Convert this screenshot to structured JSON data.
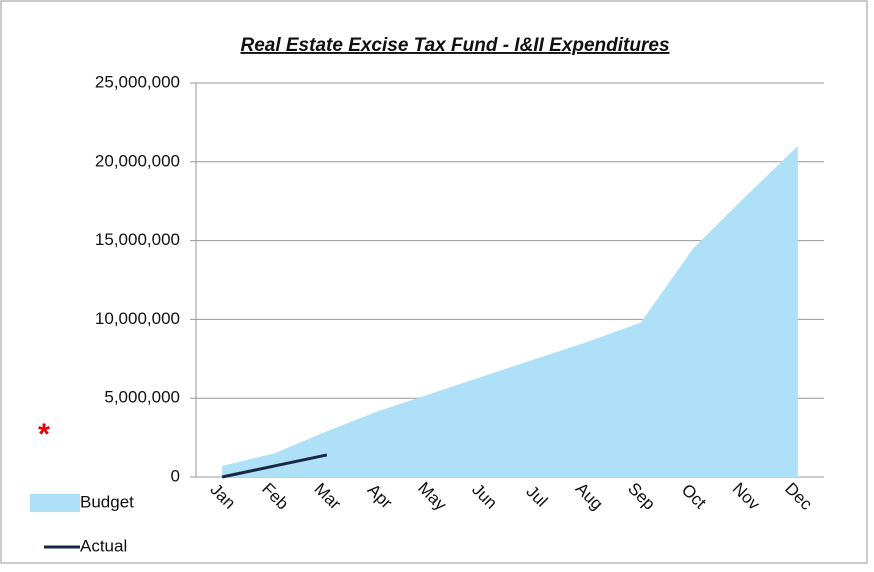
{
  "chart_data": {
    "type": "area",
    "title": "Real Estate Excise Tax Fund - I&II Expenditures",
    "annotation": "*",
    "categories": [
      "Jan",
      "Feb",
      "Mar",
      "Apr",
      "May",
      "Jun",
      "Jul",
      "Aug",
      "Sep",
      "Oct",
      "Nov",
      "Dec"
    ],
    "series": [
      {
        "name": "Budget",
        "color": "#aee0f7",
        "kind": "area",
        "values": [
          700000,
          1500000,
          2900000,
          4200000,
          5300000,
          6400000,
          7500000,
          8600000,
          9800000,
          14500000,
          17800000,
          21000000
        ]
      },
      {
        "name": "Actual",
        "color": "#1a2744",
        "kind": "line",
        "values": [
          0,
          700000,
          1400000,
          null,
          null,
          null,
          null,
          null,
          null,
          null,
          null,
          null
        ]
      }
    ],
    "ylim": [
      0,
      25000000
    ],
    "yticks": [
      0,
      {
        "value": 5000000,
        "label": "5,000,000"
      },
      {
        "value": 10000000,
        "label": "10,000,000"
      },
      {
        "value": 15000000,
        "label": "15,000,000"
      },
      {
        "value": 20000000,
        "label": "20,000,000"
      },
      {
        "value": 25000000,
        "label": "25,000,000"
      }
    ],
    "grid": true,
    "legend": "bottom-left"
  }
}
